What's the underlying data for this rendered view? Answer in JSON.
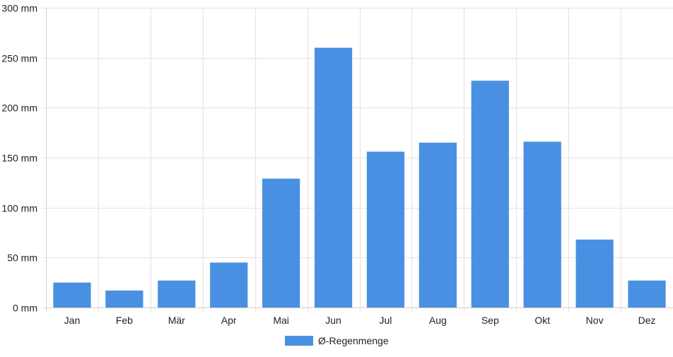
{
  "chart_data": {
    "type": "bar",
    "categories": [
      "Jan",
      "Feb",
      "Mär",
      "Apr",
      "Mai",
      "Jun",
      "Jul",
      "Aug",
      "Sep",
      "Okt",
      "Nov",
      "Dez"
    ],
    "series": [
      {
        "name": "Ø-Regenmenge",
        "color": "#4a90e2",
        "values": [
          25,
          17,
          27,
          45,
          129,
          260,
          156,
          165,
          227,
          166,
          68,
          27
        ]
      }
    ],
    "ylim": [
      0,
      300
    ],
    "y_ticks": [
      {
        "value": 0,
        "label": "0 mm"
      },
      {
        "value": 50,
        "label": "50 mm"
      },
      {
        "value": 100,
        "label": "100 mm"
      },
      {
        "value": 150,
        "label": "150 mm"
      },
      {
        "value": 200,
        "label": "200 mm"
      },
      {
        "value": 250,
        "label": "250 mm"
      },
      {
        "value": 300,
        "label": "300 mm"
      }
    ],
    "grid": true,
    "legend_position": "bottom-center"
  }
}
